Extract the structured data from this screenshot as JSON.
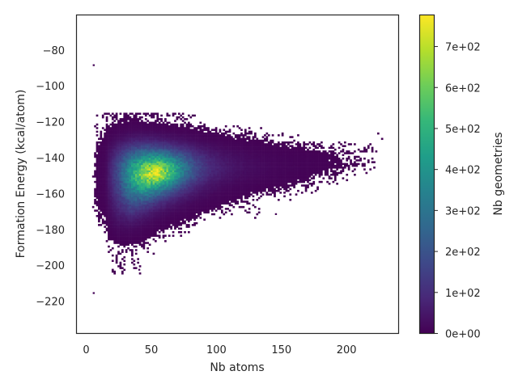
{
  "chart_data": {
    "type": "heatmap",
    "subtype": "2d-histogram",
    "title": "",
    "xlabel": "Nb atoms",
    "ylabel": "Formation Energy (kcal/atom)",
    "xlim": [
      -7.5,
      240
    ],
    "ylim": [
      -238,
      -60.5
    ],
    "xticks": [
      0,
      50,
      100,
      150,
      200
    ],
    "xtick_labels": [
      "0",
      "50",
      "100",
      "150",
      "200"
    ],
    "yticks": [
      -80,
      -100,
      -120,
      -140,
      -160,
      -180,
      -200,
      -220
    ],
    "ytick_labels": [
      "−80",
      "−100",
      "−120",
      "−140",
      "−160",
      "−180",
      "−200",
      "−220"
    ],
    "grid": false,
    "colormap": "viridis",
    "colorbar": {
      "label": "Nb geometries",
      "range": [
        0,
        777
      ],
      "ticks": [
        0,
        100,
        200,
        300,
        400,
        500,
        600,
        700
      ],
      "tick_labels": [
        "0e+00",
        "1e+02",
        "2e+02",
        "3e+02",
        "4e+02",
        "5e+02",
        "6e+02",
        "7e+02"
      ]
    },
    "approx_density_grid": {
      "x_centers": [
        5,
        15,
        25,
        35,
        45,
        55,
        65,
        75,
        85,
        95,
        105,
        115,
        125,
        135,
        145,
        155,
        165,
        175,
        185,
        195,
        205,
        215,
        225
      ],
      "y_centers": [
        -120,
        -125,
        -130,
        -135,
        -140,
        -145,
        -150,
        -155,
        -160,
        -165,
        -170,
        -175,
        -180,
        -185,
        -190,
        -195,
        -200
      ],
      "counts": [
        [
          0,
          1,
          2,
          3,
          2,
          2,
          1,
          1,
          0,
          0,
          0,
          0,
          0,
          0,
          0,
          0,
          0,
          0,
          0,
          0,
          0,
          0,
          0
        ],
        [
          0,
          2,
          8,
          15,
          15,
          12,
          8,
          5,
          3,
          2,
          1,
          1,
          1,
          0,
          0,
          0,
          0,
          0,
          0,
          0,
          0,
          0,
          0
        ],
        [
          0,
          4,
          30,
          60,
          70,
          60,
          45,
          30,
          18,
          10,
          6,
          4,
          3,
          2,
          1,
          1,
          0,
          0,
          0,
          0,
          0,
          0,
          1
        ],
        [
          0,
          8,
          80,
          160,
          200,
          190,
          150,
          100,
          60,
          35,
          22,
          15,
          10,
          7,
          5,
          4,
          3,
          2,
          1,
          1,
          1,
          1,
          0
        ],
        [
          0,
          12,
          140,
          300,
          400,
          420,
          340,
          220,
          130,
          75,
          45,
          30,
          20,
          15,
          11,
          8,
          6,
          5,
          4,
          3,
          2,
          1,
          0
        ],
        [
          0,
          15,
          180,
          420,
          600,
          680,
          520,
          320,
          170,
          95,
          60,
          40,
          28,
          20,
          14,
          11,
          8,
          6,
          4,
          3,
          2,
          1,
          0
        ],
        [
          0,
          15,
          190,
          460,
          680,
          770,
          540,
          300,
          150,
          80,
          48,
          30,
          20,
          14,
          10,
          7,
          5,
          3,
          2,
          1,
          0,
          0,
          0
        ],
        [
          0,
          14,
          170,
          400,
          540,
          480,
          320,
          170,
          85,
          45,
          25,
          15,
          9,
          6,
          4,
          3,
          2,
          1,
          0,
          0,
          0,
          0,
          0
        ],
        [
          0,
          12,
          140,
          300,
          340,
          260,
          150,
          80,
          40,
          20,
          10,
          6,
          3,
          2,
          1,
          1,
          0,
          0,
          0,
          0,
          0,
          0,
          0
        ],
        [
          0,
          8,
          100,
          200,
          180,
          110,
          60,
          30,
          14,
          6,
          3,
          2,
          1,
          0,
          0,
          0,
          0,
          0,
          0,
          0,
          0,
          0,
          0
        ],
        [
          0,
          5,
          70,
          120,
          80,
          40,
          20,
          10,
          4,
          2,
          1,
          0,
          1,
          0,
          0,
          0,
          0,
          0,
          0,
          0,
          0,
          0,
          0
        ],
        [
          0,
          3,
          40,
          55,
          30,
          14,
          6,
          3,
          1,
          0,
          0,
          0,
          0,
          0,
          0,
          0,
          0,
          0,
          0,
          0,
          0,
          0,
          0
        ],
        [
          0,
          1,
          18,
          20,
          10,
          4,
          2,
          1,
          0,
          0,
          0,
          0,
          0,
          0,
          0,
          0,
          0,
          0,
          0,
          0,
          0,
          0,
          0
        ],
        [
          0,
          0,
          6,
          6,
          3,
          1,
          0,
          0,
          0,
          0,
          0,
          0,
          0,
          0,
          0,
          0,
          0,
          0,
          0,
          0,
          0,
          0,
          0
        ],
        [
          0,
          0,
          2,
          2,
          1,
          0,
          0,
          0,
          0,
          0,
          0,
          0,
          0,
          0,
          0,
          0,
          0,
          0,
          0,
          0,
          0,
          0,
          0
        ],
        [
          0,
          0,
          1,
          1,
          0,
          0,
          0,
          0,
          0,
          0,
          0,
          0,
          0,
          0,
          0,
          0,
          0,
          0,
          0,
          0,
          0,
          0,
          0
        ],
        [
          0,
          0,
          1,
          1,
          0,
          0,
          0,
          0,
          0,
          0,
          0,
          0,
          0,
          0,
          0,
          0,
          0,
          0,
          0,
          0,
          0,
          0,
          0
        ]
      ]
    },
    "peak": {
      "x": 55,
      "y": -148,
      "count": 770
    },
    "isolated_points": [
      [
        5,
        -88
      ],
      [
        5,
        -215
      ],
      [
        40,
        -202
      ],
      [
        145,
        -171
      ]
    ]
  }
}
